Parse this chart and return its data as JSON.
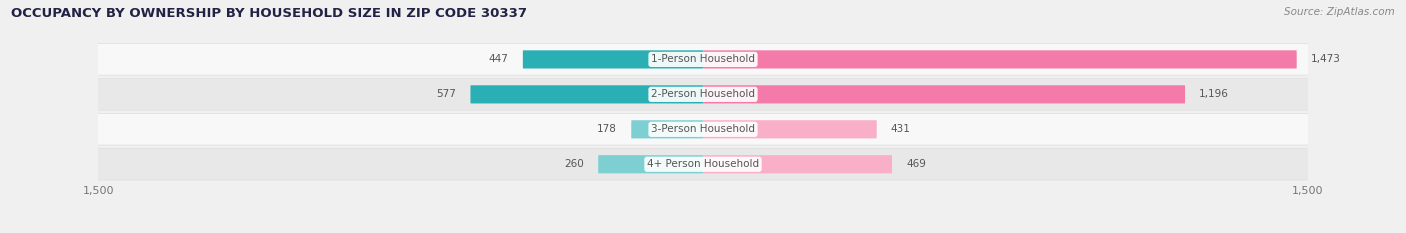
{
  "title": "OCCUPANCY BY OWNERSHIP BY HOUSEHOLD SIZE IN ZIP CODE 30337",
  "source": "Source: ZipAtlas.com",
  "categories": [
    "1-Person Household",
    "2-Person Household",
    "3-Person Household",
    "4+ Person Household"
  ],
  "owner_values": [
    447,
    577,
    178,
    260
  ],
  "renter_values": [
    1473,
    1196,
    431,
    469
  ],
  "owner_color_dark": "#2ab0b4",
  "owner_color_light": "#7dcfd2",
  "renter_color_dark": "#f47aaa",
  "renter_color_light": "#f9afc8",
  "axis_max": 1500,
  "axis_min": -1500,
  "bg_color": "#f0f0f0",
  "row_bg_light": "#f8f8f8",
  "row_bg_dark": "#e8e8e8",
  "title_fontsize": 9.5,
  "label_fontsize": 7.5,
  "tick_fontsize": 8,
  "source_fontsize": 7.5,
  "title_color": "#222244",
  "source_color": "#888888",
  "value_color": "#555555",
  "cat_label_color": "#555555"
}
